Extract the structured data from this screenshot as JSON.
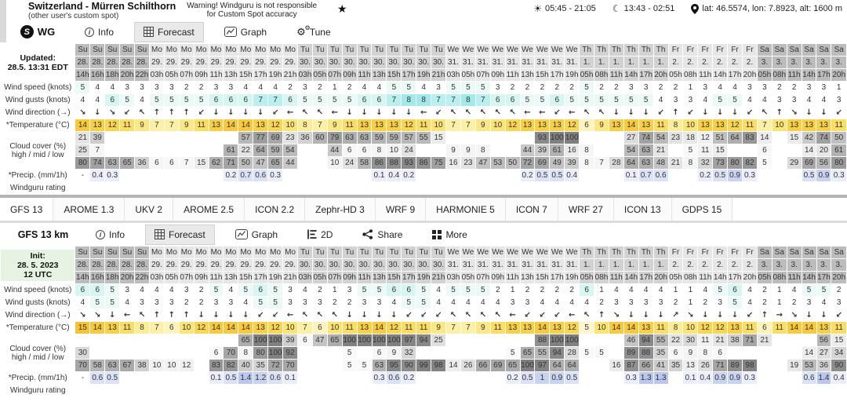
{
  "site_header": {
    "title": "Switzerland - Mürren Schilthorn",
    "subtitle": "(other user's custom spot)",
    "warning_line1": "Warning! Windguru is not responsible",
    "warning_line2": "for Custom Spot accuracy",
    "sun_times": "05:45 - 21:05",
    "moon_times": "13:43 - 02:51",
    "location": "lat: 46.5574, lon: 7.8923, alt: 1600 m"
  },
  "spot1": {
    "brand": "WG",
    "corner_lines": [
      "Updated:",
      "28.5. 13:31 EDT"
    ],
    "tabs": [
      {
        "label": "Info",
        "icon": "info",
        "active": false
      },
      {
        "label": "Forecast",
        "icon": "forecast",
        "active": true
      },
      {
        "label": "Graph",
        "icon": "graph",
        "active": false
      },
      {
        "label": "Tune",
        "icon": "tune",
        "active": false
      }
    ]
  },
  "model_tabs": [
    "GFS 13",
    "AROME 1.3",
    "UKV 2",
    "AROME 2.5",
    "ICON 2.2",
    "Zephr-HD 3",
    "WRF 9",
    "HARMONIE 5",
    "ICON 7",
    "WRF 27",
    "ICON 13",
    "GDPS 15"
  ],
  "spot2": {
    "name": "GFS 13 km",
    "corner_lines": [
      "Init:",
      "28. 5. 2023",
      "12 UTC"
    ],
    "tabs": [
      {
        "label": "Info",
        "icon": "info",
        "active": false
      },
      {
        "label": "Forecast",
        "icon": "forecast",
        "active": true
      },
      {
        "label": "Graph",
        "icon": "graph",
        "active": false
      },
      {
        "label": "2D",
        "icon": "2d",
        "active": false
      },
      {
        "label": "Share",
        "icon": "share",
        "active": false
      },
      {
        "label": "More",
        "icon": "more",
        "active": false
      }
    ]
  },
  "row_labels": {
    "speed": "Wind speed (knots)",
    "gusts": "Wind gusts (knots)",
    "dir": "Wind direction (→)",
    "temp": "*Temperature (°C)",
    "cloud_title": "Cloud cover (%)",
    "cloud_sub": "high / mid / low",
    "precip": "*Precip. (mm/1h)",
    "rating": "Windguru rating"
  },
  "columns": [
    [
      "Su",
      "28.",
      "14h"
    ],
    [
      "Su",
      "28.",
      "16h"
    ],
    [
      "Su",
      "28.",
      "18h"
    ],
    [
      "Su",
      "28.",
      "20h"
    ],
    [
      "Su",
      "28.",
      "22h"
    ],
    [
      "Mo",
      "29.",
      "03h"
    ],
    [
      "Mo",
      "29.",
      "05h"
    ],
    [
      "Mo",
      "29.",
      "07h"
    ],
    [
      "Mo",
      "29.",
      "09h"
    ],
    [
      "Mo",
      "29.",
      "11h"
    ],
    [
      "Mo",
      "29.",
      "13h"
    ],
    [
      "Mo",
      "29.",
      "15h"
    ],
    [
      "Mo",
      "29.",
      "17h"
    ],
    [
      "Mo",
      "29.",
      "19h"
    ],
    [
      "Mo",
      "29.",
      "21h"
    ],
    [
      "Tu",
      "30.",
      "03h"
    ],
    [
      "Tu",
      "30.",
      "05h"
    ],
    [
      "Tu",
      "30.",
      "07h"
    ],
    [
      "Tu",
      "30.",
      "09h"
    ],
    [
      "Tu",
      "30.",
      "11h"
    ],
    [
      "Tu",
      "30.",
      "13h"
    ],
    [
      "Tu",
      "30.",
      "15h"
    ],
    [
      "Tu",
      "30.",
      "17h"
    ],
    [
      "Tu",
      "30.",
      "19h"
    ],
    [
      "Tu",
      "30.",
      "21h"
    ],
    [
      "We",
      "31.",
      "03h"
    ],
    [
      "We",
      "31.",
      "05h"
    ],
    [
      "We",
      "31.",
      "07h"
    ],
    [
      "We",
      "31.",
      "09h"
    ],
    [
      "We",
      "31.",
      "11h"
    ],
    [
      "We",
      "31.",
      "13h"
    ],
    [
      "We",
      "31.",
      "15h"
    ],
    [
      "We",
      "31.",
      "17h"
    ],
    [
      "We",
      "31.",
      "19h"
    ],
    [
      "Th",
      "1.",
      "05h"
    ],
    [
      "Th",
      "1.",
      "08h"
    ],
    [
      "Th",
      "1.",
      "11h"
    ],
    [
      "Th",
      "1.",
      "14h"
    ],
    [
      "Th",
      "1.",
      "17h"
    ],
    [
      "Th",
      "1.",
      "20h"
    ],
    [
      "Fr",
      "2.",
      "05h"
    ],
    [
      "Fr",
      "2.",
      "08h"
    ],
    [
      "Fr",
      "2.",
      "11h"
    ],
    [
      "Fr",
      "2.",
      "14h"
    ],
    [
      "Fr",
      "2.",
      "17h"
    ],
    [
      "Fr",
      "2.",
      "20h"
    ],
    [
      "Sa",
      "3.",
      "05h"
    ],
    [
      "Sa",
      "3.",
      "08h"
    ],
    [
      "Sa",
      "3.",
      "11h"
    ],
    [
      "Sa",
      "3.",
      "14h"
    ],
    [
      "Sa",
      "3.",
      "17h"
    ],
    [
      "Sa",
      "3.",
      "20h"
    ]
  ],
  "table1": {
    "speed": [
      5,
      4,
      4,
      3,
      3,
      3,
      3,
      2,
      2,
      3,
      3,
      4,
      4,
      4,
      2,
      3,
      2,
      1,
      2,
      4,
      4,
      5,
      5,
      4,
      3,
      5,
      5,
      5,
      3,
      2,
      2,
      2,
      2,
      2,
      5,
      2,
      2,
      3,
      3,
      2,
      2,
      1,
      3,
      4,
      4,
      3,
      3,
      2,
      2,
      3,
      3,
      1
    ],
    "gusts": [
      4,
      4,
      6,
      5,
      4,
      5,
      5,
      5,
      5,
      6,
      6,
      6,
      7,
      7,
      6,
      5,
      5,
      5,
      5,
      6,
      6,
      7,
      8,
      8,
      7,
      7,
      8,
      7,
      6,
      6,
      5,
      5,
      6,
      5,
      5,
      5,
      5,
      5,
      5,
      4,
      3,
      3,
      4,
      5,
      5,
      4,
      4,
      3,
      3,
      4,
      4,
      3
    ],
    "dir": [
      "↘",
      "↓",
      "↘",
      "↙",
      "↖",
      "↑",
      "↑",
      "↑",
      "↙",
      "↓",
      "↓",
      "↓",
      "↓",
      "↙",
      "←",
      "↖",
      "↖",
      "←",
      "↓",
      "↓",
      "↓",
      "↓",
      "↓",
      "←",
      "↙",
      "↖",
      "↖",
      "↖",
      "↖",
      "↖",
      "←",
      "←",
      "↙",
      "←",
      "↖",
      "↖",
      "↓",
      "↓",
      "↓",
      "↙",
      "↑",
      "↙",
      "↓",
      "↓",
      "↓",
      "↙",
      "↖",
      "↑",
      "↘",
      "↓",
      "↓",
      "↙"
    ],
    "temp": [
      14,
      13,
      12,
      11,
      9,
      7,
      7,
      9,
      11,
      13,
      14,
      14,
      13,
      12,
      10,
      8,
      7,
      9,
      11,
      13,
      13,
      13,
      12,
      11,
      10,
      7,
      7,
      9,
      10,
      12,
      13,
      13,
      13,
      12,
      6,
      9,
      13,
      14,
      13,
      11,
      8,
      10,
      13,
      13,
      12,
      11,
      7,
      10,
      13,
      13,
      13,
      11
    ],
    "cloud_high": [
      21,
      39,
      "",
      "",
      "",
      "",
      "",
      "",
      "",
      "",
      "",
      57,
      77,
      69,
      23,
      36,
      60,
      79,
      63,
      63,
      59,
      59,
      57,
      55,
      15,
      "",
      "",
      "",
      "",
      "",
      "",
      93,
      100,
      100,
      "",
      "",
      "",
      27,
      74,
      54,
      23,
      18,
      12,
      51,
      64,
      83,
      14,
      "",
      15,
      42,
      74,
      50
    ],
    "cloud_mid": [
      25,
      7,
      "",
      "",
      "",
      "",
      "",
      "",
      "",
      "",
      61,
      22,
      64,
      59,
      54,
      "",
      "",
      44,
      6,
      6,
      8,
      10,
      24,
      "",
      "",
      9,
      9,
      8,
      "",
      "",
      44,
      39,
      61,
      16,
      8,
      "",
      "",
      54,
      63,
      21,
      "",
      5,
      11,
      15,
      "",
      "",
      6,
      "",
      "",
      14,
      20,
      61
    ],
    "cloud_low": [
      80,
      74,
      63,
      65,
      36,
      6,
      6,
      7,
      15,
      62,
      71,
      50,
      47,
      65,
      44,
      "",
      "",
      10,
      24,
      58,
      86,
      88,
      93,
      86,
      75,
      16,
      23,
      47,
      53,
      50,
      72,
      69,
      49,
      39,
      8,
      7,
      28,
      64,
      63,
      48,
      21,
      8,
      32,
      73,
      80,
      82,
      5,
      "",
      29,
      69,
      56,
      80
    ],
    "precip": [
      "-",
      0.4,
      0.3,
      "",
      "",
      "",
      "",
      "",
      "",
      "",
      0.2,
      0.7,
      0.6,
      0.3,
      "",
      "",
      "",
      "",
      "",
      "",
      0.1,
      0.4,
      0.2,
      "",
      "",
      "",
      "",
      "",
      "",
      "",
      0.2,
      0.5,
      0.5,
      0.4,
      "",
      "",
      "",
      0.1,
      0.7,
      0.6,
      "",
      "",
      0.2,
      0.5,
      0.9,
      0.3,
      "",
      "",
      "",
      0.5,
      0.9,
      0.3
    ]
  },
  "table2": {
    "speed": [
      6,
      6,
      5,
      3,
      4,
      4,
      4,
      3,
      2,
      5,
      4,
      5,
      6,
      5,
      3,
      4,
      2,
      1,
      3,
      5,
      5,
      6,
      6,
      5,
      4,
      5,
      5,
      5,
      2,
      1,
      2,
      2,
      2,
      2,
      6,
      1,
      4,
      4,
      4,
      4,
      1,
      1,
      4,
      5,
      6,
      4,
      2,
      1,
      4,
      5,
      5,
      2
    ],
    "gusts": [
      4,
      5,
      5,
      4,
      3,
      3,
      3,
      2,
      2,
      3,
      3,
      4,
      5,
      5,
      3,
      3,
      3,
      2,
      2,
      3,
      3,
      4,
      5,
      5,
      4,
      4,
      4,
      4,
      4,
      3,
      3,
      4,
      4,
      4,
      4,
      2,
      3,
      3,
      3,
      3,
      2,
      1,
      2,
      3,
      5,
      4,
      2,
      1,
      2,
      3,
      4,
      3
    ],
    "dir": [
      "↘",
      "↘",
      "↓",
      "←",
      "↖",
      "↑",
      "↑",
      "↑",
      "↓",
      "↓",
      "↓",
      "↓",
      "↙",
      "↙",
      "←",
      "↖",
      "↖",
      "↖",
      "↓",
      "↓",
      "↓",
      "↓",
      "↙",
      "↙",
      "↙",
      "↖",
      "↖",
      "↖",
      "↖",
      "←",
      "↙",
      "↙",
      "↙",
      "←",
      "↖",
      "↑",
      "↘",
      "↓",
      "↓",
      "↓",
      "↗",
      "↘",
      "↓",
      "↓",
      "↓",
      "↙",
      "↑",
      "→",
      "↘",
      "↓",
      "↓",
      "↙"
    ],
    "temp": [
      15,
      14,
      13,
      11,
      8,
      7,
      6,
      10,
      12,
      14,
      14,
      14,
      13,
      12,
      10,
      7,
      6,
      10,
      11,
      13,
      14,
      12,
      11,
      11,
      9,
      7,
      7,
      9,
      11,
      13,
      13,
      14,
      13,
      12,
      5,
      10,
      14,
      14,
      13,
      11,
      8,
      10,
      12,
      12,
      13,
      11,
      6,
      11,
      14,
      14,
      13,
      11
    ],
    "cloud_high": [
      "",
      "",
      "",
      "",
      "",
      "",
      "",
      "",
      "",
      "",
      "",
      65,
      100,
      100,
      39,
      6,
      47,
      65,
      100,
      100,
      100,
      100,
      97,
      94,
      25,
      "",
      "",
      "",
      "",
      "",
      "",
      88,
      100,
      100,
      "",
      "",
      "",
      46,
      94,
      55,
      22,
      30,
      11,
      21,
      38,
      71,
      21,
      "",
      "",
      "",
      56,
      15
    ],
    "cloud_mid": [
      30,
      "",
      "",
      "",
      "",
      "",
      "",
      "",
      "",
      6,
      70,
      8,
      80,
      100,
      92,
      "",
      "",
      "",
      5,
      "",
      6,
      9,
      32,
      "",
      "",
      "",
      "",
      "",
      "",
      5,
      65,
      55,
      94,
      28,
      5,
      5,
      "",
      89,
      88,
      35,
      6,
      9,
      8,
      6,
      "",
      "",
      "",
      "",
      "",
      14,
      27,
      34
    ],
    "cloud_low": [
      70,
      58,
      63,
      67,
      38,
      10,
      10,
      12,
      "",
      83,
      82,
      40,
      35,
      72,
      70,
      "",
      "",
      "",
      5,
      5,
      63,
      95,
      90,
      99,
      98,
      14,
      26,
      66,
      69,
      65,
      100,
      97,
      64,
      64,
      "",
      "",
      16,
      87,
      66,
      41,
      35,
      13,
      26,
      71,
      89,
      98,
      "",
      "",
      19,
      53,
      36,
      90
    ],
    "precip": [
      "-",
      0.6,
      0.5,
      "",
      "",
      "",
      "",
      "",
      "",
      0.1,
      0.5,
      1.4,
      1.2,
      0.6,
      0.1,
      "",
      "",
      "",
      "",
      "",
      0.3,
      0.6,
      0.2,
      "",
      "",
      "",
      "",
      "",
      "",
      0.2,
      0.5,
      1,
      0.9,
      0.5,
      "",
      "",
      "",
      0.3,
      1.3,
      1.3,
      "",
      0.1,
      0.4,
      0.9,
      0.9,
      0.3,
      "",
      "",
      "",
      0.6,
      1.4,
      0.4
    ]
  }
}
